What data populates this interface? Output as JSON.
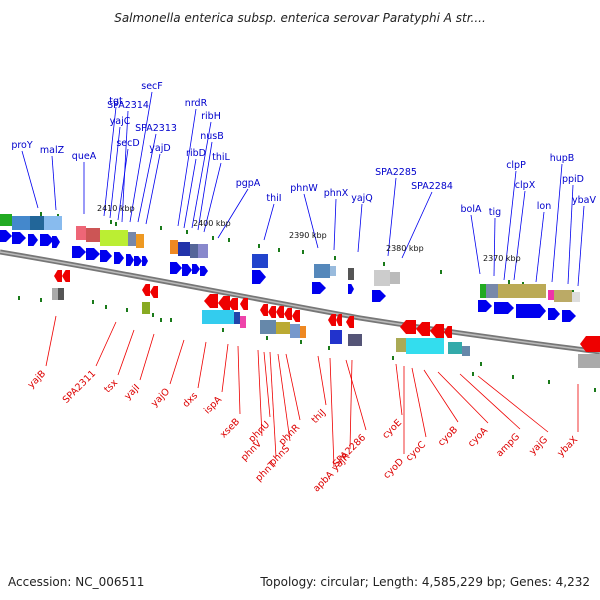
{
  "title": "Salmonella enterica subsp. enterica serovar Paratyphi A str....",
  "footer": {
    "accession": "Accession: NC_006511",
    "summary": "Topology: circular; Length: 4,585,229 bp; Genes: 4,232"
  },
  "colors": {
    "forward": "#0000ee",
    "reverse": "#ee0000",
    "label_forward": "#0000cc",
    "label_reverse": "#dd0000",
    "backbone": "#777777",
    "tick": "#1a7a1a"
  },
  "kbp_markers": [
    "2410 kbp",
    "2400 kbp",
    "2390 kbp",
    "2380 kbp",
    "2370 kbp"
  ],
  "genes_forward": [
    "proY",
    "malZ",
    "queA",
    "tgt",
    "yajC",
    "secD",
    "SPA2314",
    "secF",
    "SPA2313",
    "yajD",
    "nrdR",
    "ribD",
    "ribH",
    "nusB",
    "thiL",
    "pgpA",
    "thiI",
    "phnW",
    "phnX",
    "yajQ",
    "SPA2285",
    "SPA2284",
    "bolA",
    "tig",
    "clpP",
    "clpX",
    "lon",
    "hupB",
    "ppiD",
    "ybaV"
  ],
  "genes_reverse": [
    "yajB",
    "SPA2311",
    "tsx",
    "yajI",
    "yajO",
    "dxs",
    "ispA",
    "xseB",
    "phnV",
    "phnU",
    "phnT",
    "phnS",
    "phnR",
    "thiJ",
    "apbA",
    "SPA2286",
    "yajR",
    "cyoE",
    "cyoD",
    "cyoC",
    "cyoB",
    "cyoA",
    "ampG",
    "yajG",
    "ybaX"
  ]
}
